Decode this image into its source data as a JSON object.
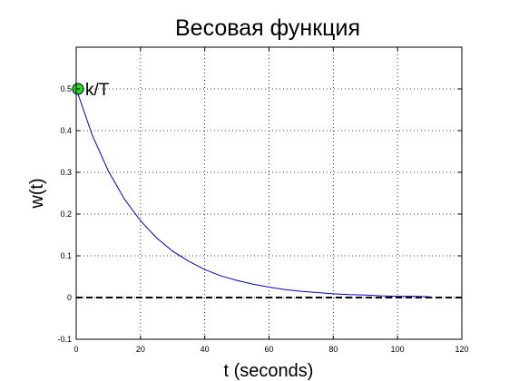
{
  "chart_data": {
    "type": "line",
    "title": "Весовая функция",
    "xlabel": "t (seconds)",
    "ylabel": "w(t)",
    "xlim": [
      0,
      120
    ],
    "ylim": [
      -0.1,
      0.6
    ],
    "xticks": [
      0,
      20,
      40,
      60,
      80,
      100,
      120
    ],
    "yticks": [
      -0.1,
      0,
      0.1,
      0.2,
      0.3,
      0.4,
      0.5
    ],
    "xtick_labels": [
      "0",
      "20",
      "40",
      "60",
      "80",
      "100",
      "120"
    ],
    "ytick_labels": [
      "-0.1",
      "0",
      "0.1",
      "0.2",
      "0.3",
      "0.4",
      "0.5"
    ],
    "grid": true,
    "series": [
      {
        "color": "#0000cc",
        "style": "solid",
        "x": [
          0,
          5,
          10,
          15,
          20,
          25,
          30,
          35,
          40,
          45,
          50,
          55,
          60,
          65,
          70,
          75,
          80,
          85,
          90,
          95,
          100,
          105,
          110
        ],
        "y": [
          0.5,
          0.389,
          0.303,
          0.236,
          0.184,
          0.143,
          0.111,
          0.087,
          0.067,
          0.052,
          0.041,
          0.032,
          0.025,
          0.019,
          0.015,
          0.012,
          0.009,
          0.007,
          0.006,
          0.004,
          0.003,
          0.003,
          0.002
        ]
      },
      {
        "color": "#000000",
        "style": "dashed",
        "x": [
          0,
          120
        ],
        "y": [
          0,
          0
        ]
      }
    ],
    "annotations": [
      {
        "text": "k/T",
        "x": 0,
        "y": 0.5,
        "marker": "circle",
        "marker_color": "#22dd22"
      }
    ]
  }
}
